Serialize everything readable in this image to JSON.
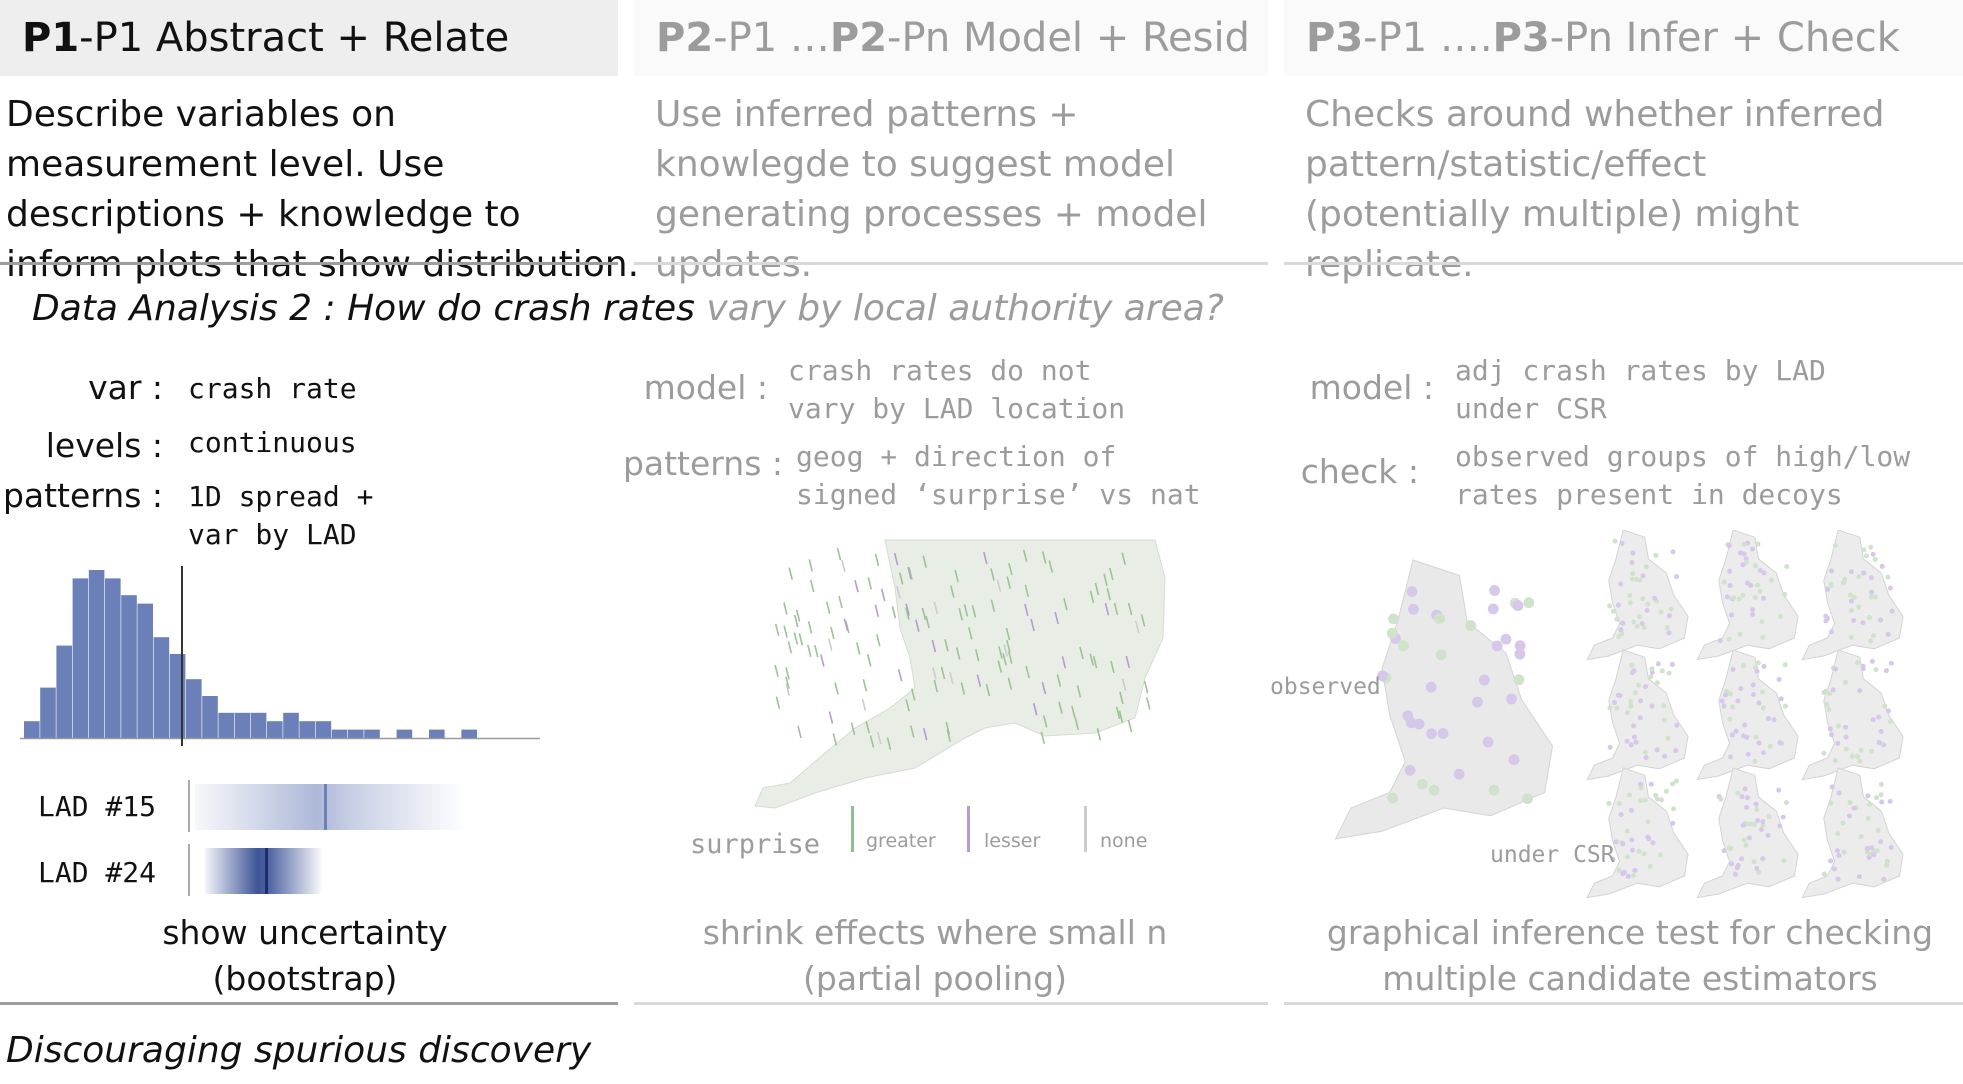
{
  "columns": [
    {
      "id_strong": "P1",
      "id_rest": "-P1 Abstract + Relate",
      "desc": "Describe variables on measurement level. Use descriptions + knowledge to inform plots that show distribution."
    },
    {
      "id_strong": "P2",
      "id_mid": "-P1 … ",
      "id_strong2": "P2",
      "id_rest": "-Pn Model + Resid",
      "desc": "Use inferred patterns + knowlegde to suggest model generating processes + model updates."
    },
    {
      "id_strong": "P3",
      "id_mid": "-P1 …. ",
      "id_strong2": "P3",
      "id_rest": "-Pn  Infer + Check",
      "desc": "Checks around whether inferred pattern/statistic/effect (potentially multiple) might replicate."
    }
  ],
  "question": {
    "part1": "Data Analysis 2 : How do crash rates",
    "part2": " vary by local authority area?"
  },
  "p1": {
    "var_label": "var :",
    "var_value": "crash rate",
    "levels_label": "levels :",
    "levels_value": "continuous",
    "patterns_label": "patterns :",
    "patterns_value": "1D spread +\nvar by LAD",
    "lad15": "LAD #15",
    "lad24": "LAD #24",
    "caption": "show uncertainty\n(bootstrap)"
  },
  "p2": {
    "model_label": "model :",
    "model_value": "crash rates do not\nvary by LAD location",
    "patterns_label": "patterns :",
    "patterns_value": "geog + direction of\nsigned ‘surprise’ vs nat",
    "legend_title": "surprise",
    "legend_greater": "greater",
    "legend_lesser": "lesser",
    "legend_none": "none",
    "caption": "shrink effects where small n\n(partial pooling)"
  },
  "p3": {
    "model_label": "model :",
    "model_value": "adj crash rates by LAD\nunder CSR",
    "check_label": "check :",
    "check_value": "observed groups of high/low\nrates present in decoys",
    "observed_label": "observed",
    "csr_label": "under CSR",
    "caption": "graphical inference test for checking\nmultiple candidate estimators"
  },
  "footer": "Discouraging spurious discovery",
  "chart_data": {
    "type": "bar",
    "title": "",
    "categories": [
      "1",
      "2",
      "3",
      "4",
      "5",
      "6",
      "7",
      "8",
      "9",
      "10",
      "11",
      "12",
      "13",
      "14",
      "15",
      "16",
      "17",
      "18",
      "19",
      "20",
      "21",
      "22",
      "23",
      "24",
      "25",
      "26",
      "27",
      "28",
      "29",
      "30"
    ],
    "values": [
      2,
      6,
      11,
      19,
      20,
      19,
      17,
      16,
      12,
      10,
      7,
      5,
      3,
      3,
      3,
      2,
      3,
      2,
      2,
      1,
      1,
      1,
      0,
      1,
      0,
      1,
      0,
      1,
      0,
      0
    ],
    "marker_position_bin": 10,
    "color": "#6b7fb8"
  },
  "colors": {
    "bar": "#6b7fb8",
    "greater": "#8fbf8a",
    "lesser": "#b79ad4",
    "map": "#e6ece4"
  }
}
